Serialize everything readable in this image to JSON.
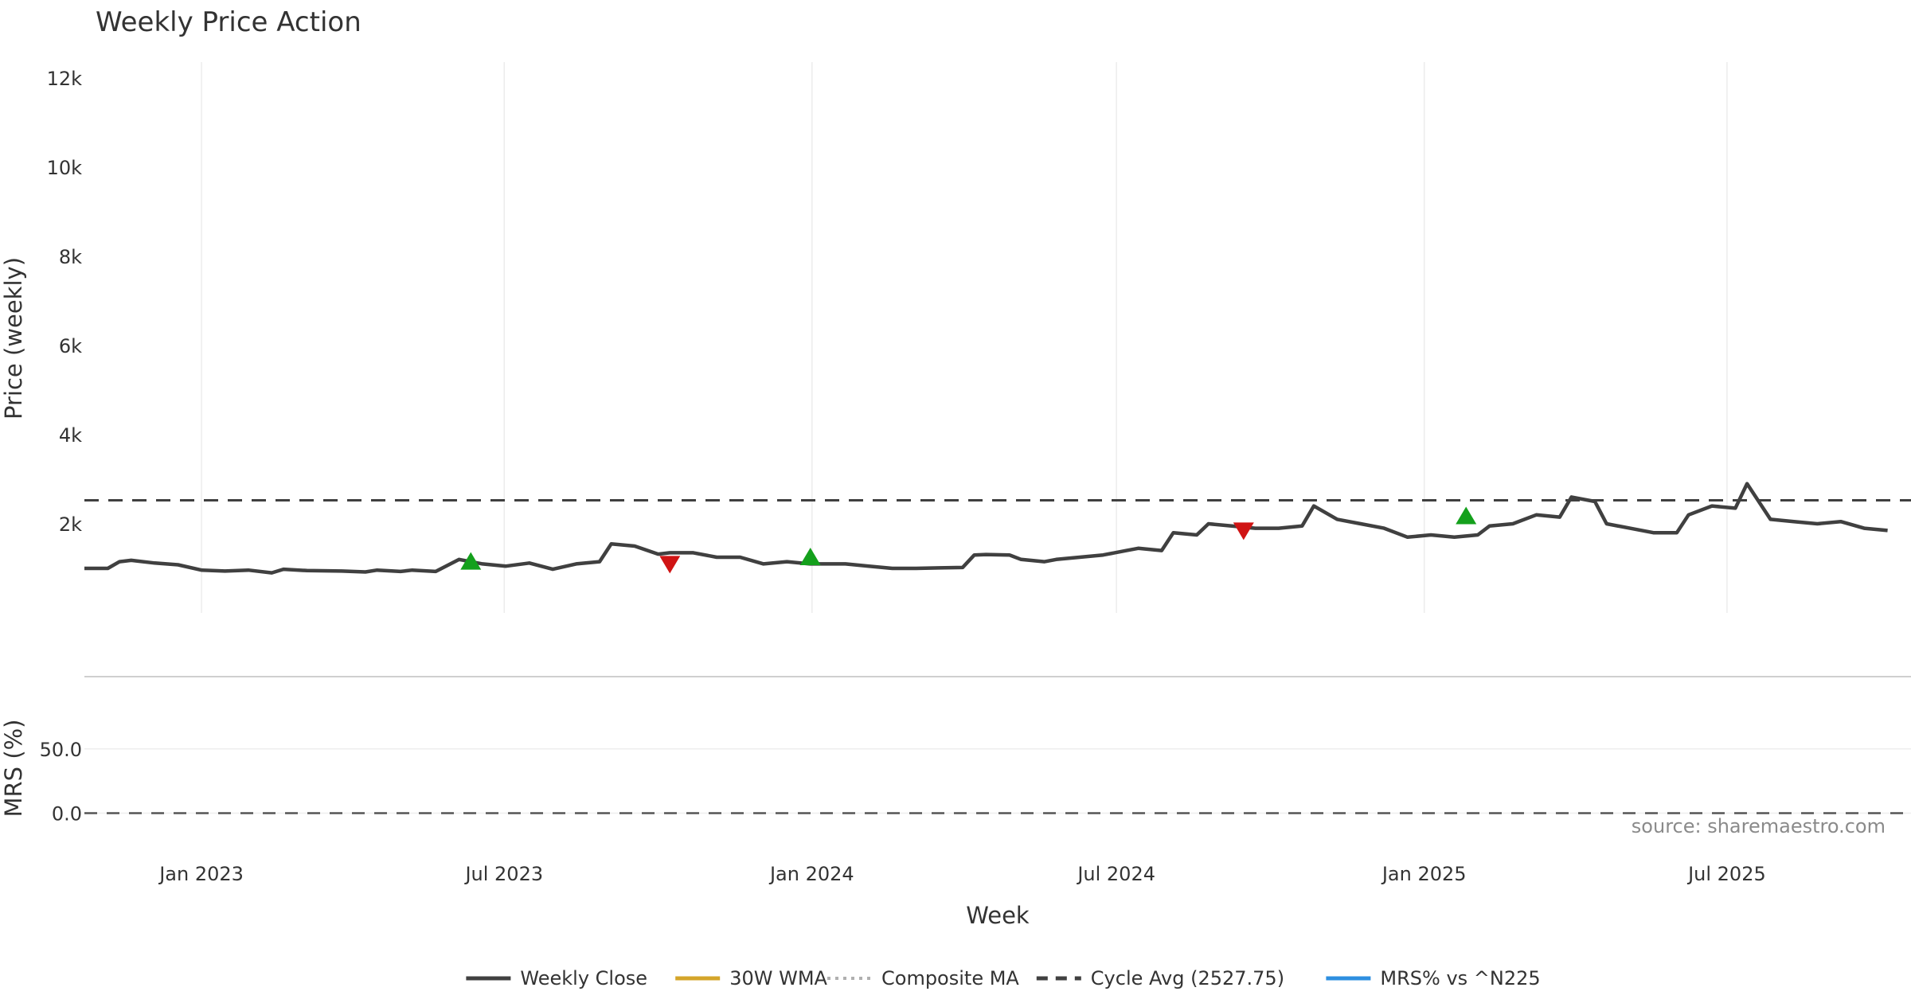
{
  "chart_data": {
    "type": "line",
    "title": "Weekly Price Action",
    "xlabel": "Week",
    "source_note": "source: sharemaestro.com",
    "x_ticks": [
      {
        "label": "Jan 2023",
        "date": "2023-01-01"
      },
      {
        "label": "Jul 2023",
        "date": "2023-07-01"
      },
      {
        "label": "Jan 2024",
        "date": "2024-01-01"
      },
      {
        "label": "Jul 2024",
        "date": "2024-07-01"
      },
      {
        "label": "Jan 2025",
        "date": "2025-01-01"
      },
      {
        "label": "Jul 2025",
        "date": "2025-07-01"
      }
    ],
    "x_range": [
      "2022-10-23",
      "2025-10-19"
    ],
    "grid": true,
    "legend_placement": "bottom-center",
    "price_panel": {
      "ylabel": "Price (weekly)",
      "ylim": [
        0,
        12500
      ],
      "y_ticks": [
        {
          "value": 2000,
          "label": "2k"
        },
        {
          "value": 4000,
          "label": "4k"
        },
        {
          "value": 6000,
          "label": "6k"
        },
        {
          "value": 8000,
          "label": "8k"
        },
        {
          "value": 10000,
          "label": "10k"
        },
        {
          "value": 12000,
          "label": "12k"
        }
      ],
      "cycle_avg": 2527.75,
      "signals": [
        {
          "date": "2023-06-11",
          "value": 1150,
          "type": "buy"
        },
        {
          "date": "2023-10-08",
          "value": 1100,
          "type": "sell"
        },
        {
          "date": "2023-12-31",
          "value": 1250,
          "type": "buy"
        },
        {
          "date": "2024-09-15",
          "value": 1850,
          "type": "sell"
        },
        {
          "date": "2025-01-26",
          "value": 2170,
          "type": "buy"
        }
      ],
      "series": [
        {
          "name": "Weekly Close",
          "color": "#404040",
          "style": "solid",
          "points": [
            [
              "2022-10-23",
              1000
            ],
            [
              "2022-11-06",
              1000
            ],
            [
              "2022-11-13",
              1150
            ],
            [
              "2022-11-20",
              1180
            ],
            [
              "2022-12-04",
              1120
            ],
            [
              "2022-12-18",
              1080
            ],
            [
              "2023-01-01",
              960
            ],
            [
              "2023-01-15",
              940
            ],
            [
              "2023-01-29",
              960
            ],
            [
              "2023-02-12",
              900
            ],
            [
              "2023-02-19",
              980
            ],
            [
              "2023-03-05",
              950
            ],
            [
              "2023-03-26",
              940
            ],
            [
              "2023-04-09",
              920
            ],
            [
              "2023-04-16",
              960
            ],
            [
              "2023-04-30",
              930
            ],
            [
              "2023-05-07",
              960
            ],
            [
              "2023-05-21",
              930
            ],
            [
              "2023-06-04",
              1200
            ],
            [
              "2023-06-18",
              1100
            ],
            [
              "2023-07-02",
              1050
            ],
            [
              "2023-07-16",
              1120
            ],
            [
              "2023-07-30",
              980
            ],
            [
              "2023-08-13",
              1100
            ],
            [
              "2023-08-27",
              1150
            ],
            [
              "2023-09-03",
              1550
            ],
            [
              "2023-09-17",
              1500
            ],
            [
              "2023-10-01",
              1320
            ],
            [
              "2023-10-08",
              1350
            ],
            [
              "2023-10-22",
              1350
            ],
            [
              "2023-11-05",
              1250
            ],
            [
              "2023-11-19",
              1250
            ],
            [
              "2023-12-03",
              1100
            ],
            [
              "2023-12-17",
              1150
            ],
            [
              "2023-12-31",
              1100
            ],
            [
              "2024-01-14",
              1100
            ],
            [
              "2024-01-21",
              1100
            ],
            [
              "2024-02-04",
              1050
            ],
            [
              "2024-02-18",
              1000
            ],
            [
              "2024-03-03",
              1000
            ],
            [
              "2024-03-17",
              1010
            ],
            [
              "2024-03-31",
              1020
            ],
            [
              "2024-04-07",
              1300
            ],
            [
              "2024-04-14",
              1310
            ],
            [
              "2024-04-28",
              1300
            ],
            [
              "2024-05-05",
              1200
            ],
            [
              "2024-05-19",
              1150
            ],
            [
              "2024-05-26",
              1200
            ],
            [
              "2024-06-09",
              1250
            ],
            [
              "2024-06-23",
              1300
            ],
            [
              "2024-07-07",
              1400
            ],
            [
              "2024-07-14",
              1450
            ],
            [
              "2024-07-28",
              1400
            ],
            [
              "2024-08-04",
              1800
            ],
            [
              "2024-08-18",
              1750
            ],
            [
              "2024-08-25",
              2000
            ],
            [
              "2024-09-08",
              1950
            ],
            [
              "2024-09-22",
              1900
            ],
            [
              "2024-10-06",
              1900
            ],
            [
              "2024-10-20",
              1950
            ],
            [
              "2024-10-27",
              2400
            ],
            [
              "2024-11-10",
              2100
            ],
            [
              "2024-11-24",
              2000
            ],
            [
              "2024-12-08",
              1900
            ],
            [
              "2024-12-22",
              1700
            ],
            [
              "2025-01-05",
              1750
            ],
            [
              "2025-01-19",
              1700
            ],
            [
              "2025-02-02",
              1750
            ],
            [
              "2025-02-09",
              1950
            ],
            [
              "2025-02-23",
              2000
            ],
            [
              "2025-03-09",
              2200
            ],
            [
              "2025-03-23",
              2150
            ],
            [
              "2025-03-30",
              2600
            ],
            [
              "2025-04-13",
              2500
            ],
            [
              "2025-04-20",
              2000
            ],
            [
              "2025-05-04",
              1900
            ],
            [
              "2025-05-18",
              1800
            ],
            [
              "2025-06-01",
              1800
            ],
            [
              "2025-06-08",
              2200
            ],
            [
              "2025-06-22",
              2400
            ],
            [
              "2025-07-06",
              2350
            ],
            [
              "2025-07-13",
              2900
            ],
            [
              "2025-07-27",
              2100
            ],
            [
              "2025-08-10",
              2050
            ],
            [
              "2025-08-24",
              2000
            ],
            [
              "2025-09-07",
              2050
            ],
            [
              "2025-09-21",
              1900
            ],
            [
              "2025-10-05",
              1850
            ]
          ]
        },
        {
          "name": "30W WMA",
          "color": "#d4a52a",
          "style": "solid",
          "points": []
        },
        {
          "name": "Composite MA",
          "color": "#b0b0b0",
          "style": "dotted",
          "points": []
        },
        {
          "name": "Cycle Avg (2527.75)",
          "color": "#404040",
          "style": "dashed",
          "points": []
        }
      ]
    },
    "mrs_panel": {
      "ylabel": "MRS (%)",
      "ylim": [
        -30,
        100
      ],
      "y_ticks": [
        {
          "value": 0,
          "label": "0.0"
        },
        {
          "value": 50,
          "label": "50.0"
        }
      ],
      "series": [
        {
          "name": "MRS% vs ^N225",
          "color": "#2e8fe0",
          "style": "solid",
          "points": []
        }
      ]
    }
  }
}
